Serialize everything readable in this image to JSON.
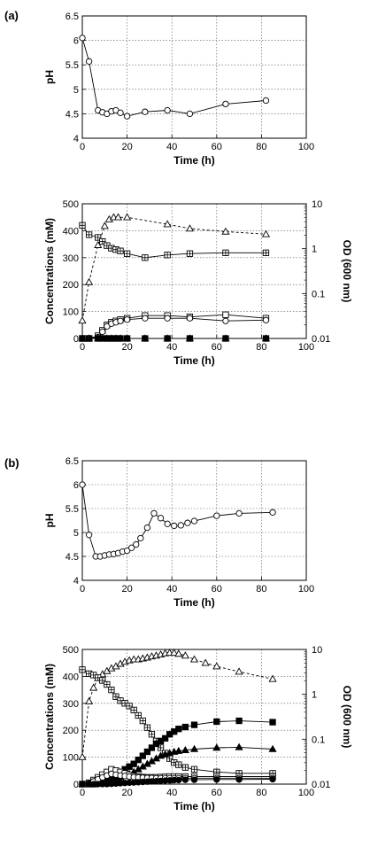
{
  "figure": {
    "panel_a_label": "(a)",
    "panel_b_label": "(b)"
  },
  "chart_data": [
    {
      "id": "a_ph",
      "type": "line",
      "xlabel": "Time (h)",
      "ylabel": "pH",
      "xlim": [
        0,
        100
      ],
      "ylim": [
        4,
        6.5
      ],
      "xticks": [
        0,
        20,
        40,
        60,
        80,
        100
      ],
      "yticks": [
        4,
        4.5,
        5,
        5.5,
        6,
        6.5
      ],
      "ytick_labels": [
        "4",
        "4.5",
        "5",
        "5.5",
        "6",
        "6.5"
      ],
      "grid": true,
      "series": [
        {
          "marker": "open-circle",
          "style": "solid",
          "x": [
            0,
            3,
            7,
            9,
            11,
            13,
            15,
            17,
            20,
            28,
            38,
            48,
            64,
            82
          ],
          "y": [
            6.05,
            5.57,
            4.57,
            4.53,
            4.5,
            4.55,
            4.57,
            4.52,
            4.45,
            4.54,
            4.57,
            4.5,
            4.7,
            4.77
          ]
        }
      ]
    },
    {
      "id": "a_conc",
      "type": "line",
      "xlabel": "Time (h)",
      "ylabel": "Concentrations (mM)",
      "y2label": "OD (600 nm)",
      "xlim": [
        0,
        100
      ],
      "ylim": [
        0,
        500
      ],
      "y2lim": [
        0.01,
        10
      ],
      "y2scale": "log",
      "xticks": [
        0,
        20,
        40,
        60,
        80,
        100
      ],
      "yticks": [
        0,
        100,
        200,
        300,
        400,
        500
      ],
      "y2ticks": [
        0.01,
        0.1,
        1,
        10
      ],
      "y2tick_labels": [
        "0.01",
        "0.1",
        "1",
        "10"
      ],
      "grid": true,
      "series": [
        {
          "axis": "y2",
          "marker": "open-triangle",
          "style": "dashed",
          "x": [
            0,
            3,
            7,
            10,
            12,
            14,
            16,
            20,
            38,
            48,
            64,
            82
          ],
          "y": [
            0.025,
            0.18,
            1.2,
            3.2,
            4.5,
            5.0,
            5.0,
            5.0,
            3.5,
            2.8,
            2.4,
            2.1
          ]
        },
        {
          "marker": "boxed-plus",
          "style": "solid",
          "x": [
            0,
            3,
            7,
            9,
            11,
            13,
            15,
            17,
            20,
            28,
            38,
            48,
            64,
            82
          ],
          "y": [
            420,
            385,
            375,
            360,
            345,
            335,
            330,
            325,
            315,
            300,
            310,
            315,
            318,
            318
          ]
        },
        {
          "marker": "open-square",
          "style": "solid",
          "x": [
            0,
            3,
            7,
            9,
            11,
            13,
            15,
            17,
            20,
            28,
            38,
            48,
            64,
            82
          ],
          "y": [
            0,
            0,
            10,
            30,
            50,
            60,
            65,
            70,
            75,
            85,
            85,
            80,
            88,
            75
          ]
        },
        {
          "marker": "open-circle",
          "style": "solid",
          "x": [
            0,
            3,
            7,
            9,
            11,
            13,
            15,
            17,
            20,
            28,
            38,
            48,
            64,
            82
          ],
          "y": [
            0,
            0,
            5,
            25,
            45,
            55,
            60,
            65,
            70,
            75,
            75,
            75,
            65,
            68
          ]
        },
        {
          "marker": "filled-square",
          "style": "solid",
          "x": [
            0,
            3,
            7,
            9,
            11,
            13,
            15,
            17,
            20,
            28,
            38,
            48,
            64,
            82
          ],
          "y": [
            0,
            0,
            0,
            0,
            0,
            0,
            0,
            0,
            0,
            0,
            0,
            0,
            0,
            0
          ]
        },
        {
          "marker": "filled-triangle",
          "style": "solid",
          "x": [
            0,
            3,
            7,
            9,
            11,
            13,
            15,
            17,
            20,
            28,
            38,
            48,
            64,
            82
          ],
          "y": [
            0,
            0,
            0,
            0,
            0,
            0,
            0,
            0,
            0,
            0,
            0,
            0,
            0,
            0
          ]
        },
        {
          "marker": "filled-circle",
          "style": "solid",
          "x": [
            0,
            3,
            7,
            9,
            11,
            13,
            15,
            17,
            20,
            28,
            38,
            48,
            64,
            82
          ],
          "y": [
            0,
            0,
            0,
            0,
            0,
            0,
            0,
            0,
            0,
            0,
            0,
            0,
            0,
            0
          ]
        }
      ]
    },
    {
      "id": "b_ph",
      "type": "line",
      "xlabel": "Time (h)",
      "ylabel": "pH",
      "xlim": [
        0,
        100
      ],
      "ylim": [
        4,
        6.5
      ],
      "xticks": [
        0,
        20,
        40,
        60,
        80,
        100
      ],
      "yticks": [
        4,
        4.5,
        5,
        5.5,
        6,
        6.5
      ],
      "ytick_labels": [
        "4",
        "4.5",
        "5",
        "5.5",
        "6",
        "6.5"
      ],
      "grid": true,
      "series": [
        {
          "marker": "open-circle",
          "style": "solid",
          "x": [
            0,
            3,
            6,
            8,
            10,
            12,
            14,
            16,
            18,
            20,
            22,
            24,
            26,
            29,
            32,
            35,
            38,
            41,
            44,
            47,
            50,
            60,
            70,
            85
          ],
          "y": [
            6.0,
            4.95,
            4.5,
            4.5,
            4.52,
            4.54,
            4.55,
            4.57,
            4.6,
            4.62,
            4.68,
            4.75,
            4.88,
            5.1,
            5.4,
            5.3,
            5.18,
            5.14,
            5.15,
            5.2,
            5.24,
            5.35,
            5.4,
            5.42
          ]
        }
      ]
    },
    {
      "id": "b_conc",
      "type": "line",
      "xlabel": "Time (h)",
      "ylabel": "Concentrations (mM)",
      "y2label": "OD (600 nm)",
      "xlim": [
        0,
        100
      ],
      "ylim": [
        0,
        500
      ],
      "y2lim": [
        0.01,
        10
      ],
      "y2scale": "log",
      "xticks": [
        0,
        20,
        40,
        60,
        80,
        100
      ],
      "yticks": [
        0,
        100,
        200,
        300,
        400,
        500
      ],
      "y2ticks": [
        0.01,
        0.1,
        1,
        10
      ],
      "y2tick_labels": [
        "0.01",
        "0.1",
        "1",
        "10"
      ],
      "grid": true,
      "series": [
        {
          "axis": "y2",
          "marker": "open-triangle",
          "style": "dashed",
          "x": [
            0,
            3,
            5,
            7,
            9,
            11,
            13,
            15,
            17,
            19,
            21,
            23,
            25,
            27,
            29,
            31,
            33,
            35,
            37,
            39,
            41,
            43,
            46,
            50,
            55,
            60,
            70,
            85
          ],
          "y": [
            0.04,
            0.7,
            1.4,
            2.3,
            2.8,
            3.3,
            3.8,
            4.2,
            4.8,
            5.3,
            5.7,
            6.0,
            6.0,
            6.3,
            6.6,
            7.0,
            7.3,
            7.7,
            8.2,
            8.4,
            8.4,
            8.0,
            7.3,
            6.0,
            5.0,
            4.2,
            3.2,
            2.2
          ]
        },
        {
          "marker": "boxed-plus",
          "style": "solid",
          "x": [
            0,
            3,
            5,
            7,
            9,
            11,
            13,
            15,
            17,
            19,
            21,
            23,
            25,
            27,
            29,
            31,
            33,
            35,
            37,
            39,
            41,
            43,
            46,
            50,
            60,
            70,
            85
          ],
          "y": [
            425,
            410,
            405,
            395,
            385,
            370,
            350,
            325,
            310,
            300,
            290,
            275,
            255,
            235,
            210,
            185,
            160,
            135,
            115,
            95,
            80,
            72,
            62,
            55,
            45,
            40,
            40
          ]
        },
        {
          "marker": "filled-square",
          "style": "solid",
          "x": [
            0,
            3,
            5,
            7,
            9,
            11,
            13,
            15,
            17,
            19,
            21,
            23,
            25,
            27,
            29,
            31,
            33,
            35,
            37,
            39,
            41,
            43,
            46,
            50,
            60,
            70,
            85
          ],
          "y": [
            0,
            0,
            0,
            3,
            8,
            15,
            25,
            35,
            45,
            55,
            65,
            75,
            90,
            105,
            120,
            135,
            150,
            160,
            170,
            185,
            195,
            205,
            212,
            220,
            232,
            235,
            230
          ]
        },
        {
          "marker": "filled-triangle",
          "style": "solid",
          "x": [
            0,
            3,
            5,
            7,
            9,
            11,
            13,
            15,
            17,
            19,
            21,
            23,
            25,
            27,
            29,
            31,
            33,
            35,
            37,
            39,
            41,
            43,
            46,
            50,
            60,
            70,
            85
          ],
          "y": [
            0,
            0,
            0,
            2,
            5,
            10,
            15,
            20,
            25,
            30,
            38,
            45,
            55,
            65,
            75,
            85,
            95,
            105,
            110,
            115,
            120,
            123,
            126,
            130,
            135,
            137,
            130
          ]
        },
        {
          "marker": "open-square",
          "style": "solid",
          "x": [
            0,
            3,
            5,
            7,
            9,
            11,
            13,
            15,
            17,
            19,
            21,
            23,
            25,
            27,
            29,
            31,
            33,
            35,
            37,
            39,
            41,
            43,
            46,
            50,
            60,
            70,
            85
          ],
          "y": [
            0,
            5,
            15,
            25,
            35,
            45,
            55,
            50,
            45,
            40,
            35,
            30,
            28,
            26,
            25,
            25,
            25,
            26,
            27,
            28,
            28,
            28,
            28,
            28,
            28,
            28,
            28
          ]
        },
        {
          "marker": "open-circle",
          "style": "solid",
          "x": [
            0,
            3,
            5,
            7,
            9,
            11,
            13,
            15,
            17,
            19,
            21,
            23,
            25,
            27,
            29,
            31,
            33,
            35,
            37,
            39,
            41,
            43,
            46,
            50,
            60,
            70,
            85
          ],
          "y": [
            0,
            3,
            10,
            18,
            25,
            32,
            38,
            35,
            32,
            30,
            28,
            26,
            25,
            24,
            23,
            23,
            22,
            22,
            22,
            22,
            22,
            22,
            22,
            22,
            22,
            22,
            22
          ]
        },
        {
          "marker": "filled-circle",
          "style": "solid",
          "x": [
            0,
            3,
            5,
            7,
            9,
            11,
            13,
            15,
            17,
            19,
            21,
            23,
            25,
            27,
            29,
            31,
            33,
            35,
            37,
            39,
            41,
            43,
            46,
            50,
            60,
            70,
            85
          ],
          "y": [
            0,
            0,
            0,
            0,
            0,
            0,
            1,
            2,
            3,
            4,
            5,
            6,
            7,
            8,
            9,
            10,
            11,
            12,
            13,
            14,
            15,
            15,
            16,
            16,
            17,
            17,
            18
          ]
        }
      ]
    }
  ]
}
